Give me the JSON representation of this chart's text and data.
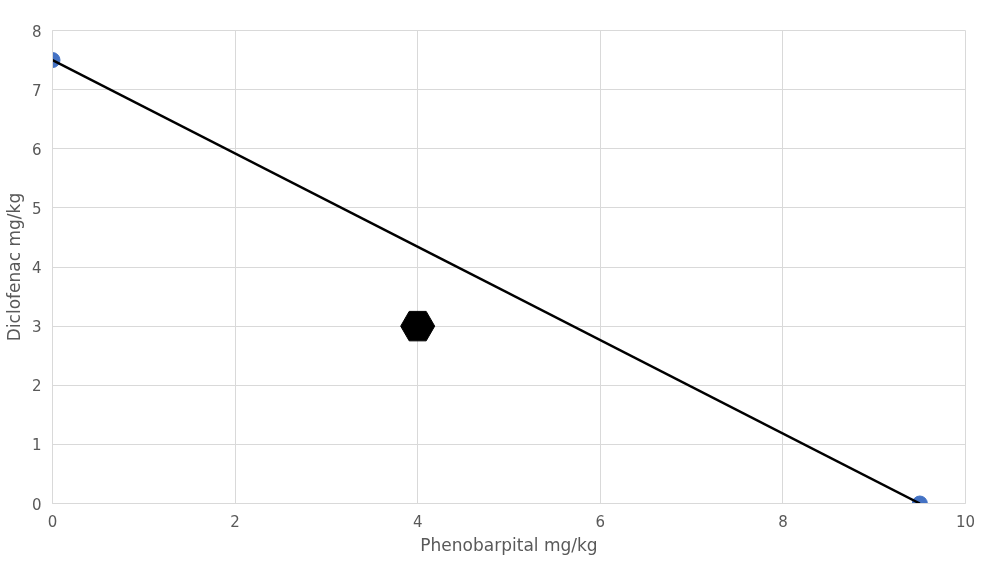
{
  "chart_data": {
    "type": "scatter",
    "xlabel": "Phenobarpital mg/kg",
    "ylabel": "Diclofenac mg/kg",
    "series": [
      {
        "x": [
          0,
          9.5
        ],
        "values": [
          7.5,
          0
        ],
        "color": "#4472c4",
        "marker": "circle"
      },
      {
        "type": "line",
        "x": [
          0,
          9.5
        ],
        "values": [
          7.5,
          0
        ],
        "color": "#000000",
        "marker": "none"
      },
      {
        "x": [
          4
        ],
        "values": [
          3
        ],
        "color": "#000000"
      }
    ],
    "xlim": [
      0,
      10
    ],
    "ylim": [
      0,
      8
    ],
    "xticks": [
      0,
      2,
      4,
      6,
      8,
      10
    ],
    "yticks": [
      0,
      1,
      2,
      3,
      4,
      5,
      6,
      7,
      8
    ],
    "grid": true
  }
}
